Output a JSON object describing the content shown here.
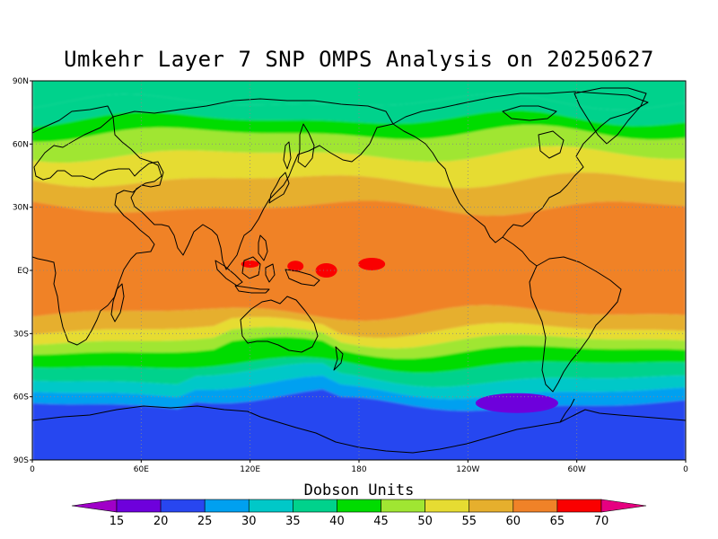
{
  "title": "Umkehr Layer 7 SNP OMPS Analysis on 20250627",
  "colorbar": {
    "title": "Dobson Units",
    "levels": [
      "15",
      "20",
      "25",
      "30",
      "35",
      "40",
      "45",
      "50",
      "55",
      "60",
      "65",
      "70"
    ],
    "colors": [
      "#a000c8",
      "#6e00dc",
      "#2846f0",
      "#00a0f0",
      "#00c8c8",
      "#00d28c",
      "#00dc00",
      "#a0e632",
      "#e6dc32",
      "#e6af2d",
      "#f08228",
      "#fa0000",
      "#e60080"
    ]
  },
  "axes": {
    "lat_ticks": [
      "90N",
      "60N",
      "30N",
      "EQ",
      "30S",
      "60S",
      "90S"
    ],
    "lon_ticks": [
      "0",
      "60E",
      "120E",
      "180",
      "120W",
      "60W",
      "0"
    ]
  },
  "map": {
    "projection": "cylindrical-equidistant",
    "lon_range": [
      0,
      360
    ],
    "lat_range": [
      -90,
      90
    ],
    "grid": true,
    "grid_style": "dotted",
    "coastlines": true
  },
  "chart_data": {
    "type": "heatmap",
    "title": "Umkehr Layer 7 SNP OMPS Analysis on 20250627",
    "colorbar_label": "Dobson Units",
    "contour_levels": [
      15,
      20,
      25,
      30,
      35,
      40,
      45,
      50,
      55,
      60,
      65,
      70
    ],
    "zonal_bands": [
      {
        "lat_range": [
          80,
          90
        ],
        "value_range": [
          35,
          40
        ]
      },
      {
        "lat_range": [
          72,
          80
        ],
        "value_range": [
          35,
          40
        ]
      },
      {
        "lat_range": [
          65,
          72
        ],
        "value_range": [
          40,
          45
        ]
      },
      {
        "lat_range": [
          55,
          65
        ],
        "value_range": [
          45,
          50
        ]
      },
      {
        "lat_range": [
          43,
          55
        ],
        "value_range": [
          50,
          55
        ]
      },
      {
        "lat_range": [
          30,
          43
        ],
        "value_range": [
          55,
          60
        ]
      },
      {
        "lat_range": [
          -20,
          30
        ],
        "value_range": [
          60,
          65
        ]
      },
      {
        "lat_range": [
          -28,
          -20
        ],
        "value_range": [
          55,
          60
        ]
      },
      {
        "lat_range": [
          -33,
          -28
        ],
        "value_range": [
          50,
          55
        ]
      },
      {
        "lat_range": [
          -38,
          -33
        ],
        "value_range": [
          45,
          50
        ]
      },
      {
        "lat_range": [
          -45,
          -38
        ],
        "value_range": [
          40,
          45
        ]
      },
      {
        "lat_range": [
          -52,
          -45
        ],
        "value_range": [
          35,
          40
        ]
      },
      {
        "lat_range": [
          -58,
          -52
        ],
        "value_range": [
          30,
          35
        ]
      },
      {
        "lat_range": [
          -64,
          -58
        ],
        "value_range": [
          25,
          30
        ]
      },
      {
        "lat_range": [
          -90,
          -64
        ],
        "value_range": [
          20,
          25
        ]
      }
    ],
    "maxima": [
      {
        "lon": 120,
        "lat": 3,
        "value_range": [
          65,
          70
        ]
      },
      {
        "lon": 145,
        "lat": 2,
        "value_range": [
          65,
          70
        ]
      },
      {
        "lon": 162,
        "lat": 0,
        "value_range": [
          65,
          70
        ]
      },
      {
        "lon": 187,
        "lat": 3,
        "value_range": [
          65,
          70
        ]
      }
    ],
    "minima": [
      {
        "lon": 267,
        "lat": -63,
        "value_range": [
          15,
          20
        ]
      }
    ]
  }
}
